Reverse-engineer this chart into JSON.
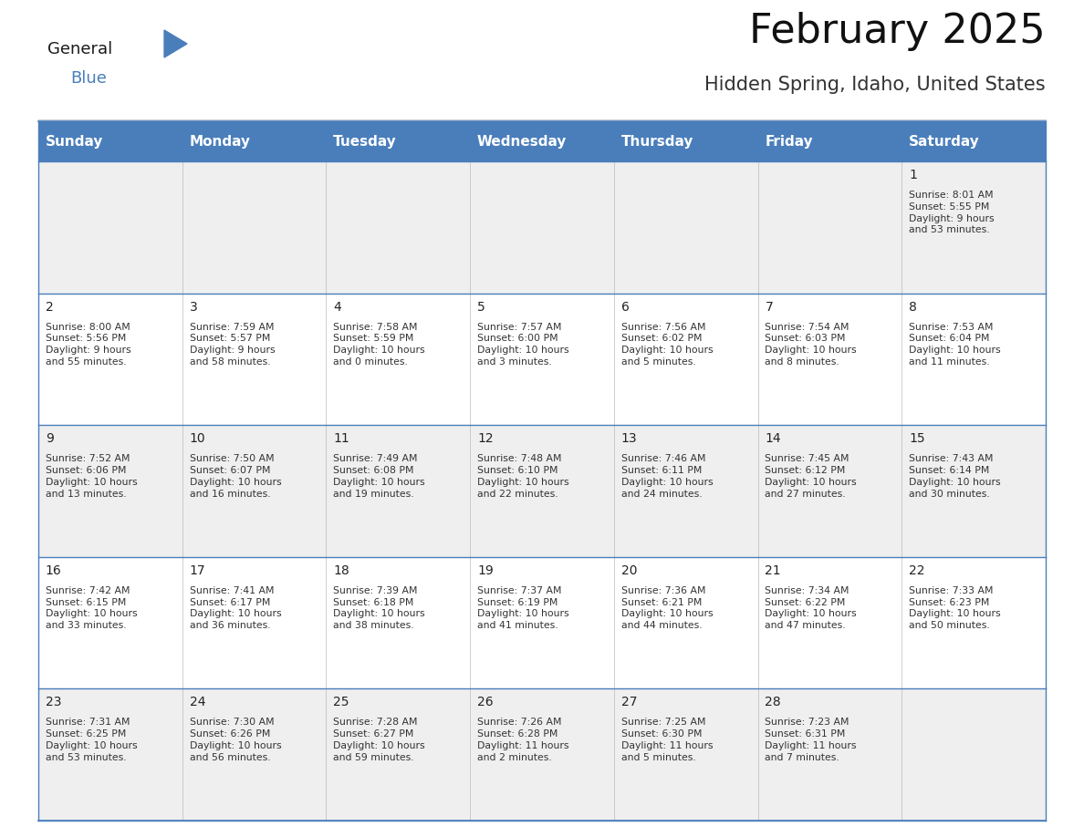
{
  "title": "February 2025",
  "subtitle": "Hidden Spring, Idaho, United States",
  "header_color": "#4a7ebb",
  "header_text_color": "#ffffff",
  "cell_bg_row0": "#efefef",
  "cell_bg_row1": "#ffffff",
  "border_color": "#4a7ebb",
  "text_color": "#333333",
  "day_num_color": "#222222",
  "day_headers": [
    "Sunday",
    "Monday",
    "Tuesday",
    "Wednesday",
    "Thursday",
    "Friday",
    "Saturday"
  ],
  "title_fontsize": 32,
  "subtitle_fontsize": 15,
  "header_fontsize": 11,
  "day_num_fontsize": 10,
  "info_fontsize": 7.8,
  "logo_fontsize_general": 13,
  "logo_fontsize_blue": 13,
  "logo_color_general": "#1a1a1a",
  "logo_color_blue": "#4a7ebb",
  "triangle_color": "#4a7ebb",
  "calendar": [
    [
      null,
      null,
      null,
      null,
      null,
      null,
      {
        "day": 1,
        "sunrise": "8:01 AM",
        "sunset": "5:55 PM",
        "daylight": "9 hours\nand 53 minutes."
      }
    ],
    [
      {
        "day": 2,
        "sunrise": "8:00 AM",
        "sunset": "5:56 PM",
        "daylight": "9 hours\nand 55 minutes."
      },
      {
        "day": 3,
        "sunrise": "7:59 AM",
        "sunset": "5:57 PM",
        "daylight": "9 hours\nand 58 minutes."
      },
      {
        "day": 4,
        "sunrise": "7:58 AM",
        "sunset": "5:59 PM",
        "daylight": "10 hours\nand 0 minutes."
      },
      {
        "day": 5,
        "sunrise": "7:57 AM",
        "sunset": "6:00 PM",
        "daylight": "10 hours\nand 3 minutes."
      },
      {
        "day": 6,
        "sunrise": "7:56 AM",
        "sunset": "6:02 PM",
        "daylight": "10 hours\nand 5 minutes."
      },
      {
        "day": 7,
        "sunrise": "7:54 AM",
        "sunset": "6:03 PM",
        "daylight": "10 hours\nand 8 minutes."
      },
      {
        "day": 8,
        "sunrise": "7:53 AM",
        "sunset": "6:04 PM",
        "daylight": "10 hours\nand 11 minutes."
      }
    ],
    [
      {
        "day": 9,
        "sunrise": "7:52 AM",
        "sunset": "6:06 PM",
        "daylight": "10 hours\nand 13 minutes."
      },
      {
        "day": 10,
        "sunrise": "7:50 AM",
        "sunset": "6:07 PM",
        "daylight": "10 hours\nand 16 minutes."
      },
      {
        "day": 11,
        "sunrise": "7:49 AM",
        "sunset": "6:08 PM",
        "daylight": "10 hours\nand 19 minutes."
      },
      {
        "day": 12,
        "sunrise": "7:48 AM",
        "sunset": "6:10 PM",
        "daylight": "10 hours\nand 22 minutes."
      },
      {
        "day": 13,
        "sunrise": "7:46 AM",
        "sunset": "6:11 PM",
        "daylight": "10 hours\nand 24 minutes."
      },
      {
        "day": 14,
        "sunrise": "7:45 AM",
        "sunset": "6:12 PM",
        "daylight": "10 hours\nand 27 minutes."
      },
      {
        "day": 15,
        "sunrise": "7:43 AM",
        "sunset": "6:14 PM",
        "daylight": "10 hours\nand 30 minutes."
      }
    ],
    [
      {
        "day": 16,
        "sunrise": "7:42 AM",
        "sunset": "6:15 PM",
        "daylight": "10 hours\nand 33 minutes."
      },
      {
        "day": 17,
        "sunrise": "7:41 AM",
        "sunset": "6:17 PM",
        "daylight": "10 hours\nand 36 minutes."
      },
      {
        "day": 18,
        "sunrise": "7:39 AM",
        "sunset": "6:18 PM",
        "daylight": "10 hours\nand 38 minutes."
      },
      {
        "day": 19,
        "sunrise": "7:37 AM",
        "sunset": "6:19 PM",
        "daylight": "10 hours\nand 41 minutes."
      },
      {
        "day": 20,
        "sunrise": "7:36 AM",
        "sunset": "6:21 PM",
        "daylight": "10 hours\nand 44 minutes."
      },
      {
        "day": 21,
        "sunrise": "7:34 AM",
        "sunset": "6:22 PM",
        "daylight": "10 hours\nand 47 minutes."
      },
      {
        "day": 22,
        "sunrise": "7:33 AM",
        "sunset": "6:23 PM",
        "daylight": "10 hours\nand 50 minutes."
      }
    ],
    [
      {
        "day": 23,
        "sunrise": "7:31 AM",
        "sunset": "6:25 PM",
        "daylight": "10 hours\nand 53 minutes."
      },
      {
        "day": 24,
        "sunrise": "7:30 AM",
        "sunset": "6:26 PM",
        "daylight": "10 hours\nand 56 minutes."
      },
      {
        "day": 25,
        "sunrise": "7:28 AM",
        "sunset": "6:27 PM",
        "daylight": "10 hours\nand 59 minutes."
      },
      {
        "day": 26,
        "sunrise": "7:26 AM",
        "sunset": "6:28 PM",
        "daylight": "11 hours\nand 2 minutes."
      },
      {
        "day": 27,
        "sunrise": "7:25 AM",
        "sunset": "6:30 PM",
        "daylight": "11 hours\nand 5 minutes."
      },
      {
        "day": 28,
        "sunrise": "7:23 AM",
        "sunset": "6:31 PM",
        "daylight": "11 hours\nand 7 minutes."
      },
      null
    ]
  ]
}
